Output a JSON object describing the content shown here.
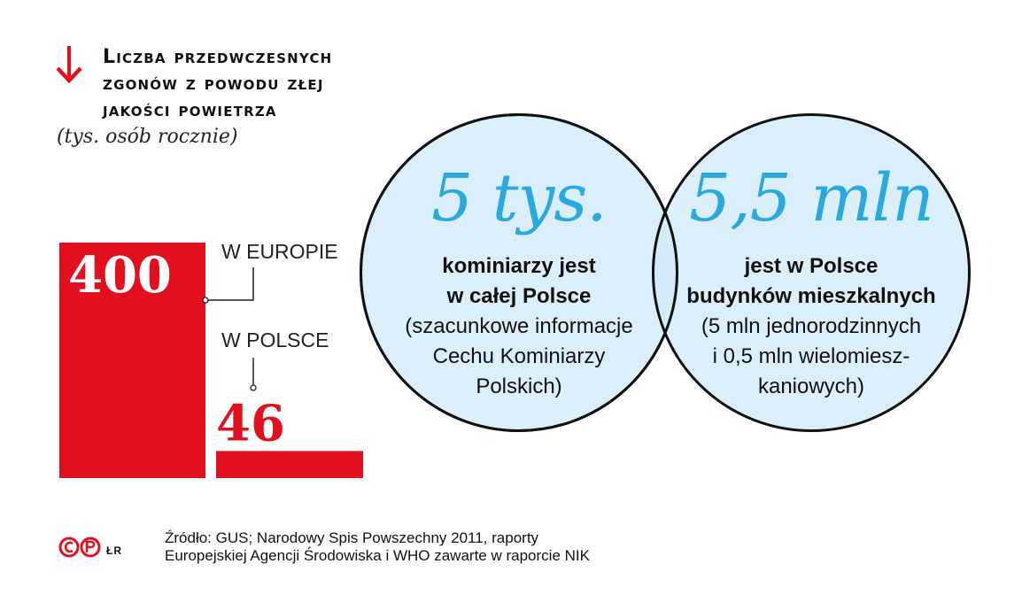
{
  "header": {
    "title_lines": [
      "Liczba przedwczesnych",
      "zgonów z powodu złej",
      "jakości powietrza"
    ],
    "subtitle": "(tys. osób rocznie)"
  },
  "colors": {
    "bar": "#e2101e",
    "accent": "#29a9df",
    "circle_fill": "#d2ecf9"
  },
  "chart_data": {
    "type": "bar",
    "categories": [
      "W EUROPIE",
      "W POLSCE"
    ],
    "values": [
      400,
      46
    ],
    "value_labels": [
      "400",
      "46"
    ],
    "grid": false,
    "legend": "none"
  },
  "circles": [
    {
      "big": "5 tys.",
      "bold_lines": [
        "kominiarzy jest",
        "w całej Polsce"
      ],
      "lines": [
        "(szacunkowe informacje",
        "Cechu Kominiarzy",
        "Polskich)"
      ]
    },
    {
      "big": "5,5 mln",
      "bold_lines": [
        "jest w Polsce",
        "budynków mieszkalnych"
      ],
      "lines": [
        "(5 mln jednorodzinnych",
        "i 0,5 mln wielomiesz-",
        "kaniowych)"
      ]
    }
  ],
  "footer": {
    "source_lines": [
      "Źródło: GUS; Narodowy Spis Powszechny 2011, raporty",
      "Europejskiej Agencji Środowiska i WHO zawarte w raporcie NIK"
    ],
    "logo_text": "ŁR"
  }
}
